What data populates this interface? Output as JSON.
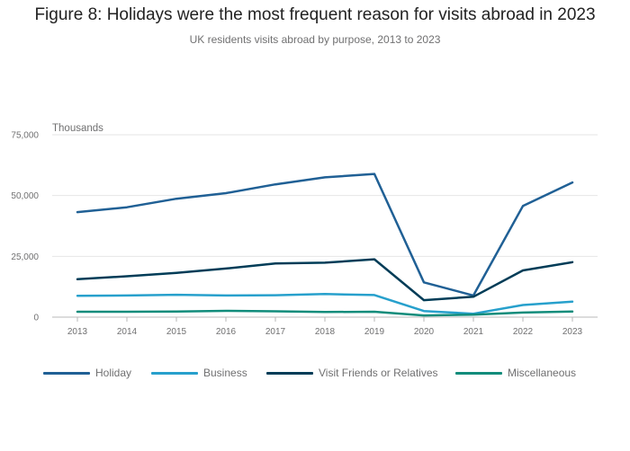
{
  "header": {
    "title": "Figure 8: Holidays were the most frequent reason for visits abroad in 2023",
    "subtitle": "UK residents visits abroad by purpose, 2013 to 2023"
  },
  "chart_data": {
    "type": "line",
    "title": "Figure 8: Holidays were the most frequent reason for visits abroad in 2023",
    "subtitle": "UK residents visits abroad by purpose, 2013 to 2023",
    "ylabel": "Thousands",
    "xlabel": "",
    "ylim": [
      0,
      75000
    ],
    "yticks": [
      0,
      25000,
      50000,
      75000
    ],
    "ytick_labels": [
      "0",
      "25,000",
      "50,000",
      "75,000"
    ],
    "grid": true,
    "legend_position": "bottom",
    "x": [
      "2013",
      "2014",
      "2015",
      "2016",
      "2017",
      "2018",
      "2019",
      "2020",
      "2021",
      "2022",
      "2023"
    ],
    "series": [
      {
        "name": "Holiday",
        "color": "#206095",
        "values": [
          43200,
          45200,
          48700,
          51000,
          54600,
          57500,
          58900,
          14300,
          8900,
          45700,
          55400
        ]
      },
      {
        "name": "Business",
        "color": "#27a0cc",
        "values": [
          8800,
          8900,
          9200,
          8900,
          9000,
          9500,
          9100,
          2500,
          1400,
          5000,
          6400
        ]
      },
      {
        "name": "Visit Friends or Relatives",
        "color": "#003c57",
        "values": [
          15600,
          16800,
          18200,
          20000,
          22100,
          22400,
          23800,
          7000,
          8400,
          19200,
          22600
        ]
      },
      {
        "name": "Miscellaneous",
        "color": "#118c7b",
        "values": [
          2200,
          2200,
          2300,
          2600,
          2400,
          2100,
          2200,
          700,
          1000,
          1900,
          2300
        ]
      }
    ]
  }
}
